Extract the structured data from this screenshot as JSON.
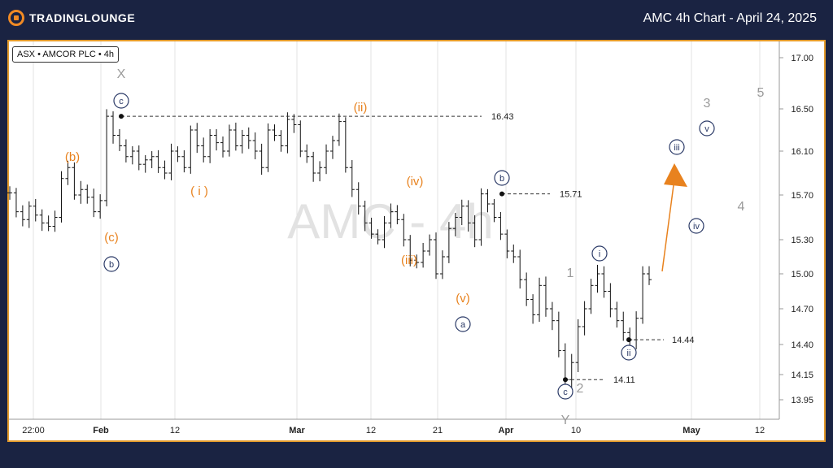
{
  "header": {
    "brand": "TRADINGLOUNGE",
    "title": "AMC 4h Chart - April 24, 2025"
  },
  "ticker_label": "ASX • AMCOR PLC • 4h",
  "watermark": "AMC - 4h",
  "colors": {
    "orange": "#e8821e",
    "navy": "#2b3a67",
    "gray": "#9a9a9a",
    "grid": "#e3e3e3"
  },
  "chart_data": {
    "type": "candlestick",
    "y_ticks": [
      "17.00",
      "16.50",
      "16.10",
      "15.70",
      "15.30",
      "15.00",
      "14.70",
      "14.40",
      "14.15",
      "13.95"
    ],
    "y_values": [
      17.0,
      16.5,
      16.1,
      15.7,
      15.3,
      15.0,
      14.7,
      14.4,
      14.15,
      13.95
    ],
    "x_ticks": [
      "22:00",
      "Feb",
      "12",
      "Mar",
      "12",
      "21",
      "Apr",
      "10",
      "May",
      "12"
    ],
    "levels": [
      {
        "label": "16.43",
        "value": 16.43
      },
      {
        "label": "15.71",
        "value": 15.71
      },
      {
        "label": "14.44",
        "value": 14.44
      },
      {
        "label": "14.11",
        "value": 14.11
      }
    ],
    "wave_labels": {
      "orange": [
        "(b)",
        "(c)",
        "( i )",
        "(ii)",
        "(iv)",
        "(iii)",
        "(v)"
      ],
      "navy": [
        "c",
        "b",
        "b",
        "a",
        "c",
        "i",
        "ii",
        "iii",
        "iv",
        "v"
      ],
      "gray": [
        "X",
        "1",
        "2",
        "3",
        "4",
        "5",
        "Y"
      ]
    },
    "projection_arrow": "up",
    "price_path": [
      15.72,
      15.55,
      15.48,
      15.6,
      15.52,
      15.45,
      15.42,
      15.5,
      15.85,
      15.95,
      15.7,
      15.75,
      15.68,
      15.55,
      15.65,
      16.43,
      16.25,
      16.15,
      16.05,
      16.1,
      15.98,
      16.02,
      16.05,
      15.95,
      15.9,
      16.1,
      16.05,
      15.95,
      16.3,
      16.15,
      16.05,
      16.25,
      16.18,
      16.1,
      16.3,
      16.15,
      16.25,
      16.2,
      16.1,
      15.95,
      16.3,
      16.25,
      16.15,
      16.4,
      16.35,
      16.1,
      16.05,
      15.9,
      15.95,
      16.1,
      16.2,
      16.38,
      15.95,
      15.75,
      15.6,
      15.45,
      15.35,
      15.3,
      15.45,
      15.55,
      15.48,
      15.3,
      15.12,
      15.1,
      15.2,
      15.3,
      15.0,
      15.15,
      15.4,
      15.5,
      15.6,
      15.45,
      15.3,
      15.71,
      15.62,
      15.5,
      15.35,
      15.2,
      15.15,
      14.95,
      14.78,
      14.65,
      14.9,
      14.7,
      14.6,
      14.35,
      14.11,
      14.25,
      14.55,
      14.7,
      14.9,
      15.0,
      14.85,
      14.7,
      14.6,
      14.5,
      14.44,
      14.62,
      15.0,
      14.95
    ]
  }
}
